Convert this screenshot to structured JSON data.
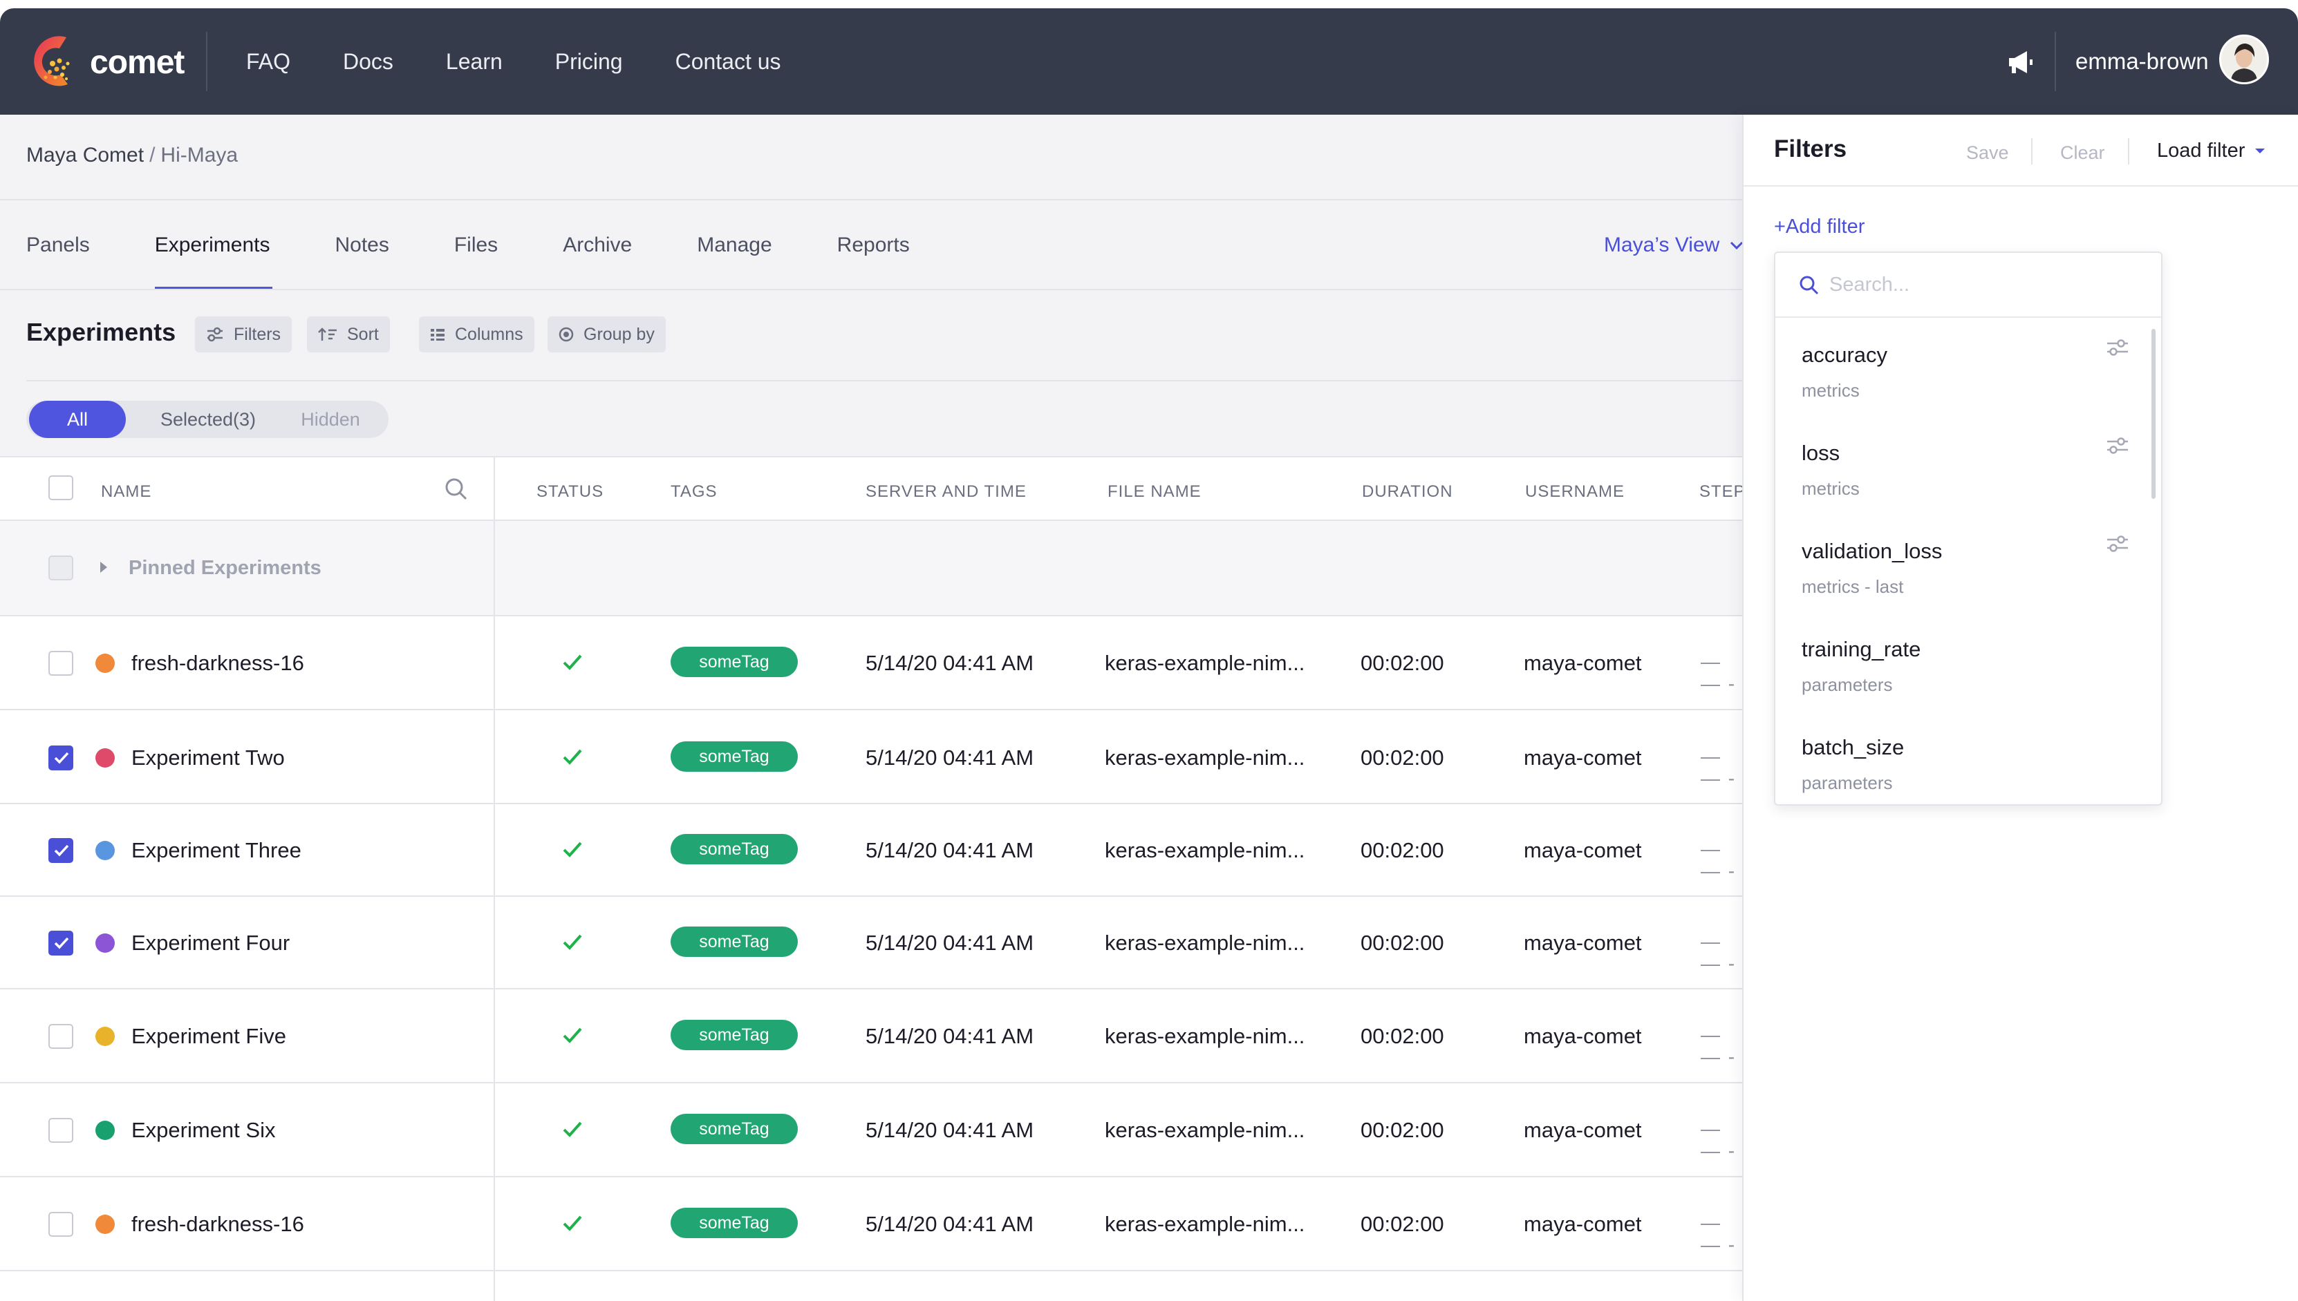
{
  "nav": {
    "logo_text": "comet",
    "links": [
      "FAQ",
      "Docs",
      "Learn",
      "Pricing",
      "Contact us"
    ],
    "username": "emma-brown"
  },
  "breadcrumb": {
    "workspace": "Maya Comet",
    "separator": "/",
    "project": "Hi-Maya"
  },
  "tabs": [
    "Panels",
    "Experiments",
    "Notes",
    "Files",
    "Archive",
    "Manage",
    "Reports"
  ],
  "active_tab": "Experiments",
  "view_selector": "Maya’s View",
  "toolbar": {
    "title": "Experiments",
    "filters": "Filters",
    "sort": "Sort",
    "columns": "Columns",
    "group_by": "Group by"
  },
  "segment": {
    "all": "All",
    "selected": "Selected(3)",
    "hidden": "Hidden"
  },
  "table": {
    "headers": [
      "NAME",
      "STATUS",
      "TAGS",
      "SERVER AND TIME",
      "FILE NAME",
      "DURATION",
      "USERNAME",
      "STEP"
    ],
    "pinned_label": "Pinned Experiments",
    "rows": [
      {
        "name": "fresh-darkness-16",
        "color": "#f0893a",
        "checked": false,
        "tag": "someTag",
        "time": "5/14/20 04:41 AM",
        "file": "keras-example-nim...",
        "duration": "00:02:00",
        "user": "maya-comet",
        "step": "— — -"
      },
      {
        "name": "Experiment Two",
        "color": "#e04a6a",
        "checked": true,
        "tag": "someTag",
        "time": "5/14/20 04:41 AM",
        "file": "keras-example-nim...",
        "duration": "00:02:00",
        "user": "maya-comet",
        "step": "— — -"
      },
      {
        "name": "Experiment Three",
        "color": "#5a95e0",
        "checked": true,
        "tag": "someTag",
        "time": "5/14/20 04:41 AM",
        "file": "keras-example-nim...",
        "duration": "00:02:00",
        "user": "maya-comet",
        "step": "— — -"
      },
      {
        "name": "Experiment Four",
        "color": "#8b55d6",
        "checked": true,
        "tag": "someTag",
        "time": "5/14/20 04:41 AM",
        "file": "keras-example-nim...",
        "duration": "00:02:00",
        "user": "maya-comet",
        "step": "— — -"
      },
      {
        "name": "Experiment Five",
        "color": "#e8b32a",
        "checked": false,
        "tag": "someTag",
        "time": "5/14/20 04:41 AM",
        "file": "keras-example-nim...",
        "duration": "00:02:00",
        "user": "maya-comet",
        "step": "— — -"
      },
      {
        "name": "Experiment Six",
        "color": "#18a06e",
        "checked": false,
        "tag": "someTag",
        "time": "5/14/20 04:41 AM",
        "file": "keras-example-nim...",
        "duration": "00:02:00",
        "user": "maya-comet",
        "step": "— — -"
      },
      {
        "name": "fresh-darkness-16",
        "color": "#f0893a",
        "checked": false,
        "tag": "someTag",
        "time": "5/14/20 04:41 AM",
        "file": "keras-example-nim...",
        "duration": "00:02:00",
        "user": "maya-comet",
        "step": "— — -"
      }
    ]
  },
  "filters_panel": {
    "title": "Filters",
    "save": "Save",
    "clear": "Clear",
    "load_filter": "Load filter",
    "add_filter": "+Add filter",
    "search_placeholder": "Search...",
    "items": [
      {
        "label": "accuracy",
        "category": "metrics",
        "configurable": true
      },
      {
        "label": "loss",
        "category": "metrics",
        "configurable": true
      },
      {
        "label": "validation_loss",
        "category": "metrics - last",
        "configurable": true
      },
      {
        "label": "training_rate",
        "category": "parameters",
        "configurable": false
      },
      {
        "label": "batch_size",
        "category": "parameters",
        "configurable": false
      }
    ]
  },
  "colors": {
    "nav_bg": "#363b4b",
    "accent": "#5055e0",
    "tag_green": "#21a573",
    "status_green": "#1fb24a"
  }
}
